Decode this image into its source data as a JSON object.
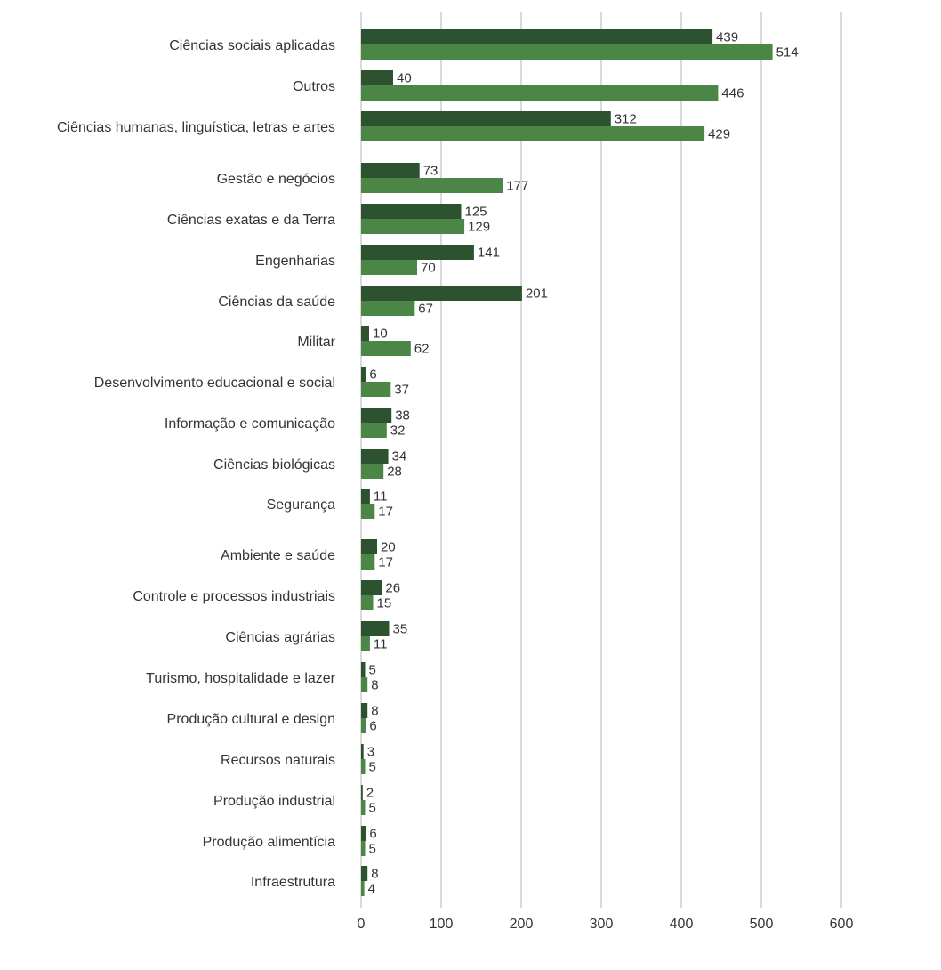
{
  "chart_data": {
    "type": "bar",
    "orientation": "horizontal",
    "xlim": [
      0,
      600
    ],
    "xticks": [
      0,
      100,
      200,
      300,
      400,
      500,
      600
    ],
    "grid": true,
    "series": [
      {
        "values": [
          439,
          40,
          312,
          73,
          125,
          141,
          201,
          10,
          6,
          38,
          34,
          11,
          20,
          26,
          35,
          5,
          8,
          3,
          2,
          6,
          8
        ],
        "color": "#2d5230"
      },
      {
        "values": [
          514,
          446,
          429,
          177,
          129,
          70,
          67,
          62,
          37,
          32,
          28,
          17,
          17,
          15,
          11,
          8,
          6,
          5,
          5,
          5,
          4
        ],
        "color": "#4b8646"
      }
    ],
    "categories": [
      "Ciências sociais aplicadas",
      "Outros",
      "Ciências humanas, linguística, letras e artes",
      "Gestão e negócios",
      "Ciências exatas e da Terra",
      "Engenharias",
      "Ciências da saúde",
      "Militar",
      "Desenvolvimento educacional e social",
      "Informação e comunicação",
      "Ciências biológicas",
      "Segurança",
      "Ambiente e saúde",
      "Controle e processos industriais",
      "Ciências agrárias",
      "Turismo, hospitalidade e lazer",
      "Produção cultural e design",
      "Recursos naturais",
      "Produção industrial",
      "Produção alimentícia",
      "Infraestrutura"
    ]
  }
}
